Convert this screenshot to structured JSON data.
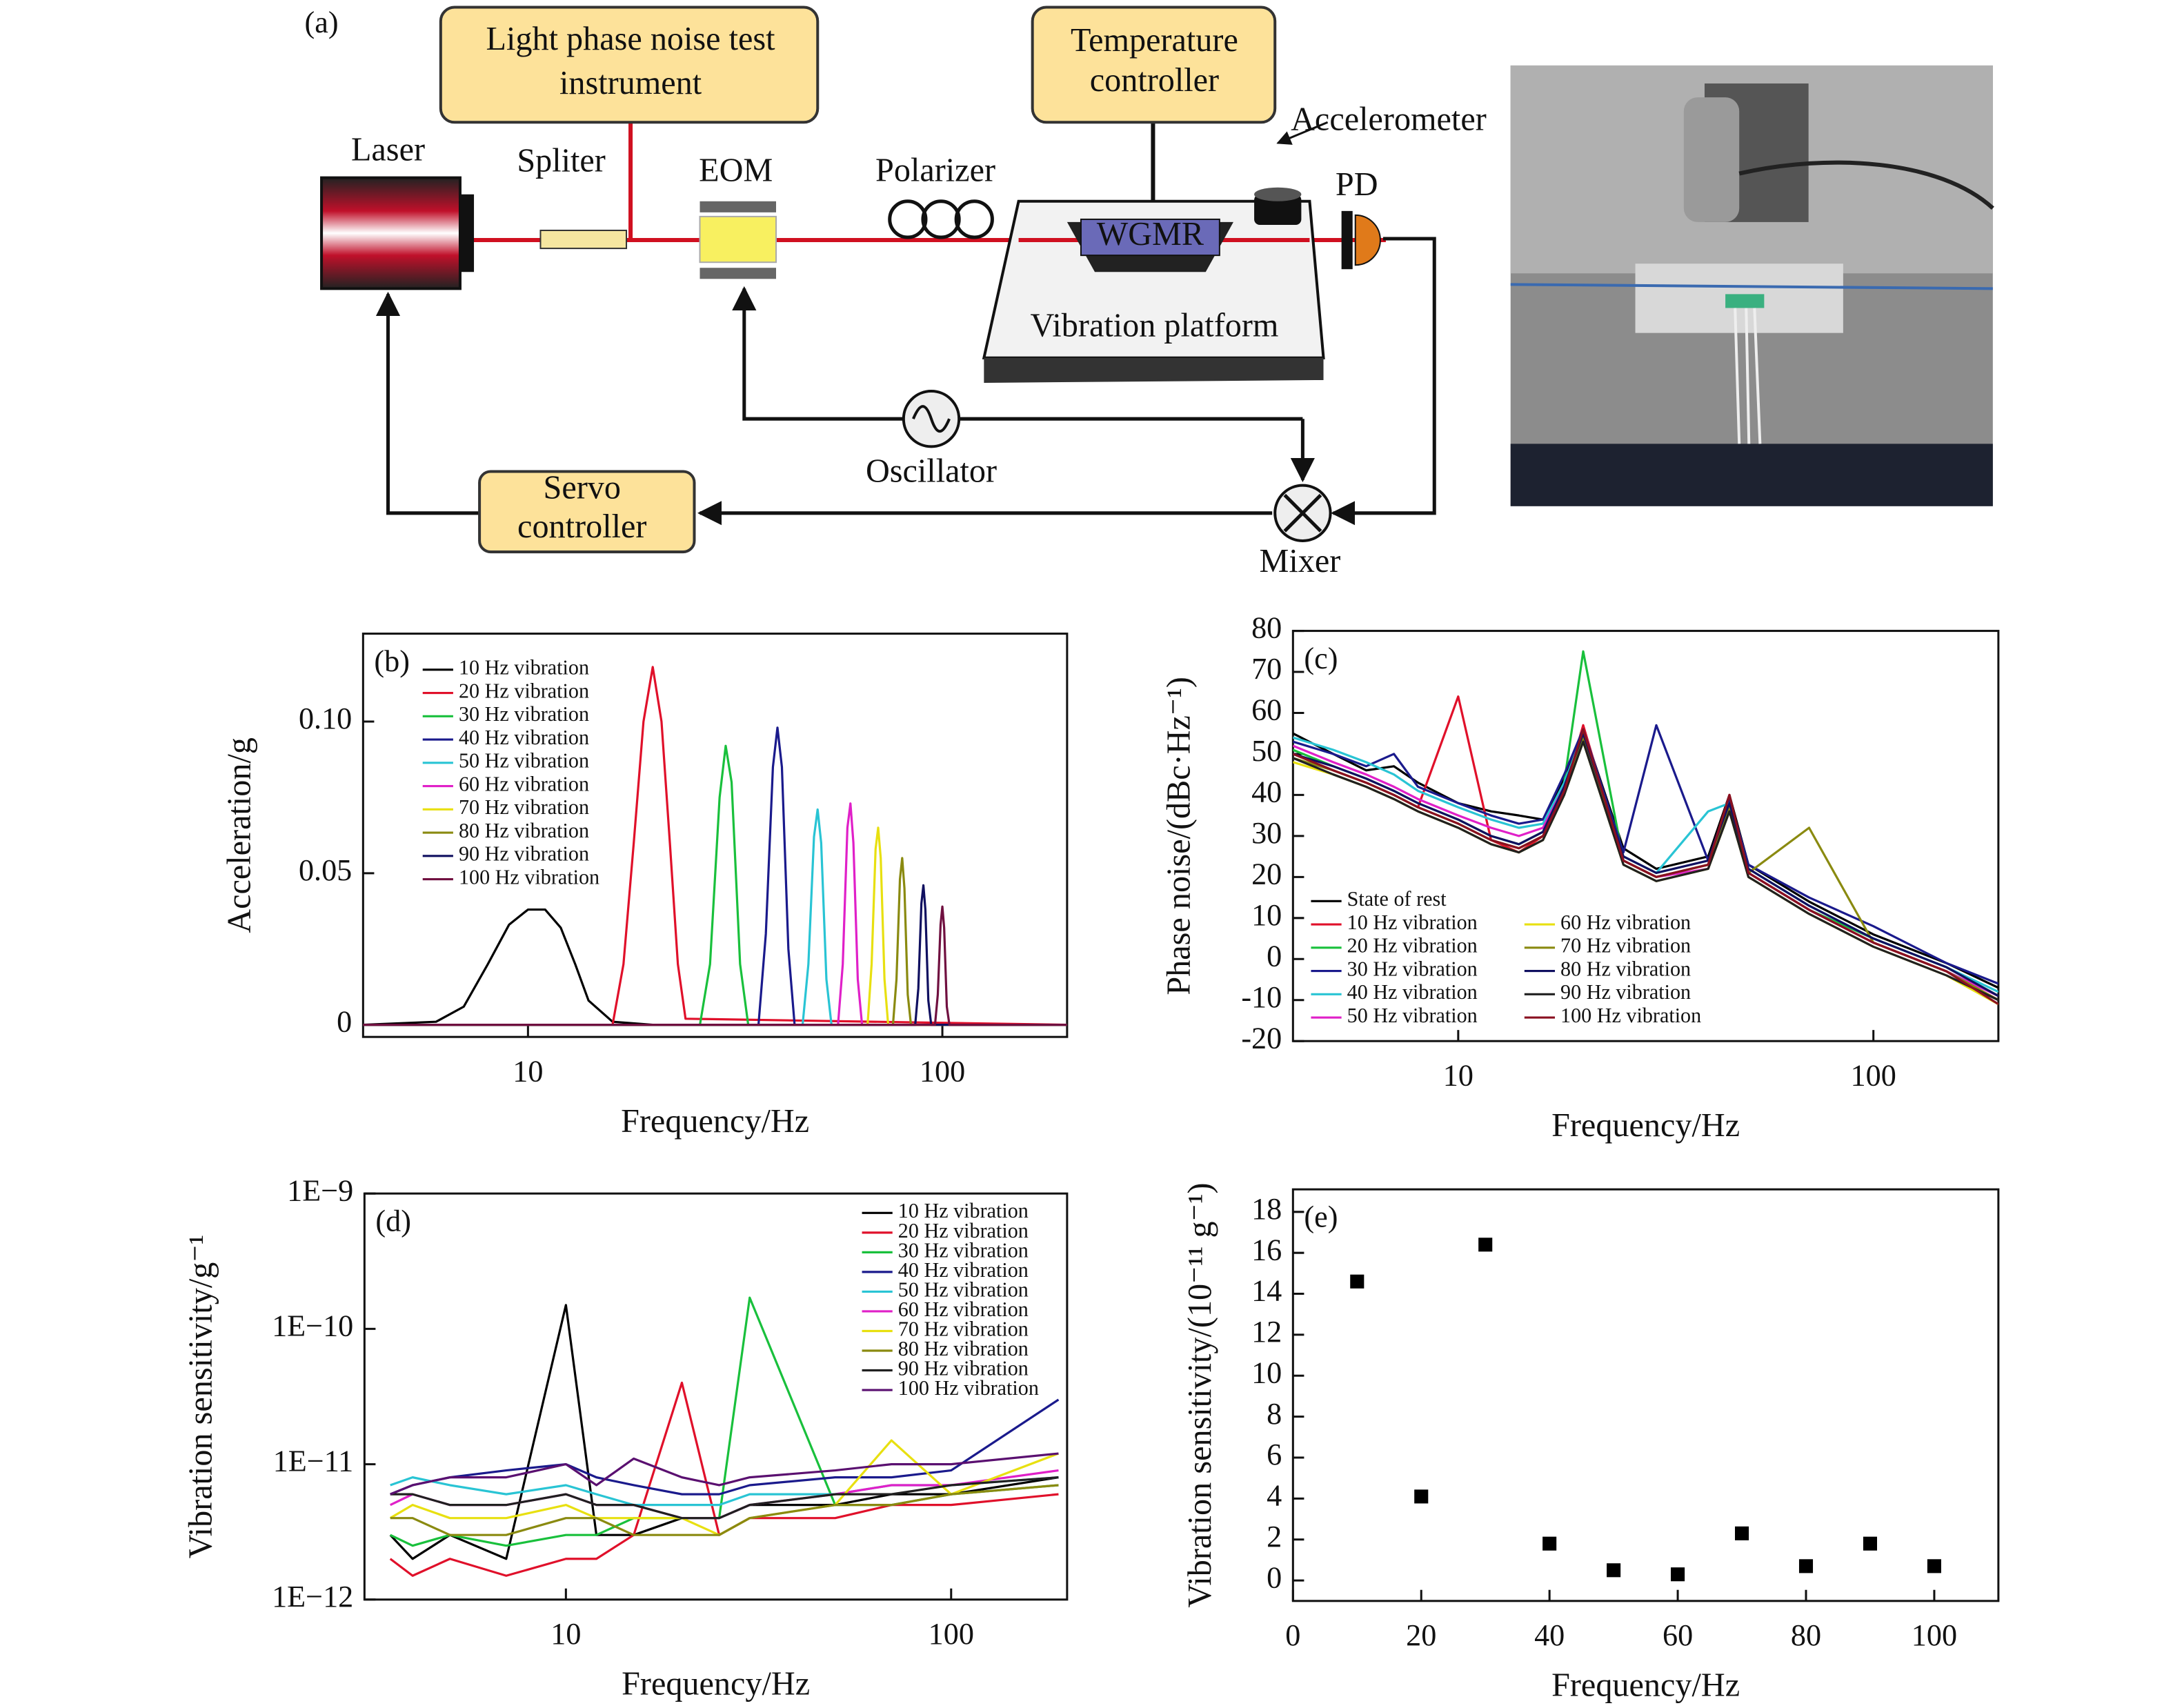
{
  "diagram": {
    "panel_label": "(a)",
    "instrument": [
      "Light phase noise test",
      "instrument"
    ],
    "temperature_controller": [
      "Temperature",
      "controller"
    ],
    "servo_controller": [
      "Servo",
      "controller"
    ],
    "laser": "Laser",
    "splitter": "Spliter",
    "eom": "EOM",
    "polarizer": "Polarizer",
    "wgmr": "WGMR",
    "pd": "PD",
    "accelerometer": "Accelerometer",
    "vibration_platform": "Vibration platform",
    "oscillator": "Oscillator",
    "mixer": "Mixer"
  },
  "chart_data": [
    {
      "type": "line",
      "panel_label": "(b)",
      "xlabel": "Frequency/Hz",
      "ylabel": "Acceleration/g",
      "xscale": "log",
      "xlim": [
        4,
        200
      ],
      "xticks": [
        10,
        100
      ],
      "ylim": [
        -0.004,
        0.129
      ],
      "yticks": [
        0,
        0.05,
        {
          "value": 0.1,
          "label": "0.10"
        }
      ],
      "legend": "upper left",
      "series": [
        {
          "name": "10 Hz vibration",
          "color": "#000000",
          "x": [
            4,
            6,
            7,
            8,
            9,
            10,
            11,
            12,
            13,
            14,
            16,
            20,
            200
          ],
          "values": [
            0,
            0.001,
            0.006,
            0.02,
            0.033,
            0.038,
            0.038,
            0.032,
            0.02,
            0.008,
            0.001,
            0,
            0
          ]
        },
        {
          "name": "20 Hz vibration",
          "color": "#e0102a",
          "x": [
            4,
            16,
            17,
            18,
            19,
            20,
            21,
            22,
            23,
            24,
            200
          ],
          "values": [
            0,
            0,
            0.02,
            0.06,
            0.1,
            0.118,
            0.1,
            0.06,
            0.02,
            0.002,
            0
          ]
        },
        {
          "name": "30 Hz vibration",
          "color": "#19c03c",
          "x": [
            4,
            26,
            27.5,
            29,
            30,
            31,
            32.5,
            34,
            200
          ],
          "values": [
            0,
            0,
            0.02,
            0.075,
            0.092,
            0.08,
            0.02,
            0,
            0
          ]
        },
        {
          "name": "40 Hz vibration",
          "color": "#1a1a8c",
          "x": [
            4,
            36,
            37.5,
            39,
            40,
            41,
            42.5,
            44,
            200
          ],
          "values": [
            0,
            0,
            0.03,
            0.085,
            0.098,
            0.085,
            0.025,
            0,
            0
          ]
        },
        {
          "name": "50 Hz vibration",
          "color": "#29c4d4",
          "x": [
            4,
            46,
            47.5,
            49,
            50,
            51,
            52.5,
            54,
            200
          ],
          "values": [
            0,
            0,
            0.02,
            0.062,
            0.071,
            0.06,
            0.015,
            0,
            0
          ]
        },
        {
          "name": "60 Hz vibration",
          "color": "#e020c8",
          "x": [
            4,
            56,
            57.5,
            59,
            60,
            61,
            62.5,
            64,
            200
          ],
          "values": [
            0,
            0,
            0.02,
            0.065,
            0.073,
            0.06,
            0.015,
            0,
            0
          ]
        },
        {
          "name": "70 Hz vibration",
          "color": "#e8e010",
          "x": [
            4,
            66,
            67.5,
            69,
            70,
            71,
            72.5,
            74,
            200
          ],
          "values": [
            0,
            0,
            0.02,
            0.058,
            0.065,
            0.055,
            0.015,
            0,
            0
          ]
        },
        {
          "name": "80 Hz vibration",
          "color": "#8a8a10",
          "x": [
            4,
            76,
            77.5,
            79,
            80,
            81,
            82.5,
            84,
            200
          ],
          "values": [
            0,
            0,
            0.015,
            0.048,
            0.055,
            0.045,
            0.01,
            0,
            0
          ]
        },
        {
          "name": "90 Hz vibration",
          "color": "#101060",
          "x": [
            4,
            86,
            87.5,
            89,
            90,
            91,
            92.5,
            94,
            200
          ],
          "values": [
            0,
            0,
            0.012,
            0.04,
            0.046,
            0.038,
            0.008,
            0,
            0
          ]
        },
        {
          "name": "100 Hz vibration",
          "color": "#701040",
          "x": [
            4,
            96,
            97.5,
            99,
            100,
            101,
            102.5,
            104,
            200
          ],
          "values": [
            0,
            0,
            0.01,
            0.033,
            0.039,
            0.032,
            0.006,
            0,
            0
          ]
        }
      ]
    },
    {
      "type": "line",
      "panel_label": "(c)",
      "xlabel": "Frequency/Hz",
      "ylabel": "Phase noise/(dBc·Hz⁻¹)",
      "xscale": "log",
      "xlim": [
        4,
        200
      ],
      "xticks": [
        10,
        100
      ],
      "ylim": [
        -20,
        80
      ],
      "yticks": [
        -20,
        -10,
        0,
        10,
        20,
        30,
        40,
        50,
        60,
        70,
        80
      ],
      "legend": "lower left",
      "legend_columns": 2,
      "x": [
        4,
        5,
        6,
        7,
        8,
        10,
        12,
        14,
        16,
        18,
        20,
        25,
        30,
        40,
        45,
        50,
        70,
        100,
        150,
        200
      ],
      "series": [
        {
          "name": "State of rest",
          "color": "#000000",
          "values": [
            55,
            50,
            46,
            47,
            43,
            38,
            36,
            35,
            34,
            44,
            56,
            27,
            22,
            25,
            40,
            23,
            14,
            6,
            -1,
            -7
          ]
        },
        {
          "name": "10 Hz vibration",
          "color": "#e0102a",
          "values": [
            50,
            46,
            43,
            40,
            37,
            64,
            29,
            26,
            30,
            41,
            57,
            24,
            20,
            23,
            40,
            21,
            12,
            4,
            -3,
            -10
          ]
        },
        {
          "name": "20 Hz vibration",
          "color": "#19c03c",
          "values": [
            51,
            47,
            44,
            41,
            38,
            34,
            30,
            28,
            31,
            43,
            75,
            24,
            20,
            23,
            37,
            21,
            12,
            5,
            -2,
            -9
          ]
        },
        {
          "name": "30 Hz vibration",
          "color": "#1a1a8c",
          "values": [
            53,
            50,
            47,
            50,
            42,
            38,
            35,
            33,
            34,
            45,
            56,
            26,
            57,
            24,
            39,
            23,
            15,
            8,
            -1,
            -6
          ]
        },
        {
          "name": "40 Hz vibration",
          "color": "#29c4d4",
          "values": [
            54,
            51,
            48,
            45,
            41,
            37,
            34,
            32,
            33,
            43,
            55,
            25,
            21,
            36,
            38,
            22,
            13,
            5,
            -2,
            -8
          ]
        },
        {
          "name": "50 Hz vibration",
          "color": "#e020c8",
          "values": [
            52,
            48,
            45,
            42,
            39,
            35,
            32,
            30,
            32,
            42,
            54,
            24,
            20,
            22,
            37,
            21,
            12,
            4,
            -3,
            -9
          ]
        },
        {
          "name": "60 Hz vibration",
          "color": "#e8e010",
          "values": [
            48,
            45,
            42,
            39,
            36,
            32,
            28,
            26,
            29,
            40,
            53,
            23,
            19,
            22,
            36,
            20,
            11,
            3,
            -4,
            -11
          ]
        },
        {
          "name": "70 Hz vibration",
          "color": "#8a8a10",
          "values": [
            49,
            46,
            43,
            40,
            37,
            33,
            29,
            27,
            30,
            41,
            54,
            24,
            20,
            23,
            37,
            21,
            32,
            4,
            -3,
            -10
          ]
        },
        {
          "name": "80 Hz vibration",
          "color": "#101060",
          "values": [
            50,
            47,
            44,
            41,
            38,
            34,
            30,
            28,
            31,
            42,
            55,
            25,
            21,
            24,
            38,
            22,
            13,
            5,
            -2,
            -9
          ]
        },
        {
          "name": "90 Hz vibration",
          "color": "#202020",
          "values": [
            49,
            45,
            42,
            39,
            36,
            32,
            28,
            26,
            29,
            40,
            53,
            23,
            19,
            22,
            36,
            20,
            11,
            3,
            -4,
            -10
          ]
        },
        {
          "name": "100 Hz vibration",
          "color": "#8a1020",
          "values": [
            50,
            46,
            43,
            40,
            37,
            33,
            29,
            27,
            30,
            41,
            56,
            24,
            20,
            23,
            40,
            21,
            12,
            4,
            -3,
            -11
          ]
        }
      ]
    },
    {
      "type": "line",
      "panel_label": "(d)",
      "xlabel": "Frequency/Hz",
      "ylabel": "Vibration sensitivity/g⁻¹",
      "xscale": "log",
      "xlim": [
        3,
        200
      ],
      "xticks": [
        10,
        100
      ],
      "yscale": "log",
      "ylim": [
        1e-12,
        1e-09
      ],
      "yticks": [
        {
          "value": 1e-12,
          "label": "1E−12"
        },
        {
          "value": 1e-11,
          "label": "1E−11"
        },
        {
          "value": 1e-10,
          "label": "1E−10"
        },
        {
          "value": 1e-09,
          "label": "1E−9"
        }
      ],
      "legend": "upper right",
      "x": [
        3.5,
        4,
        5,
        7,
        10,
        12,
        15,
        20,
        25,
        30,
        50,
        70,
        100,
        190
      ],
      "series": [
        {
          "name": "10 Hz vibration",
          "color": "#000000",
          "values": [
            3e-12,
            2e-12,
            3e-12,
            2e-12,
            1.5e-10,
            3e-12,
            3e-12,
            4e-12,
            4e-12,
            5e-12,
            5e-12,
            6e-12,
            6e-12,
            8e-12
          ]
        },
        {
          "name": "20 Hz vibration",
          "color": "#e0102a",
          "values": [
            2e-12,
            1.5e-12,
            2e-12,
            1.5e-12,
            2e-12,
            2e-12,
            3e-12,
            4e-11,
            3e-12,
            4e-12,
            4e-12,
            5e-12,
            5e-12,
            6e-12
          ]
        },
        {
          "name": "30 Hz vibration",
          "color": "#19c03c",
          "values": [
            3e-12,
            2.5e-12,
            3e-12,
            2.5e-12,
            3e-12,
            3e-12,
            4e-12,
            4e-12,
            4e-12,
            1.7e-10,
            5e-12,
            5e-12,
            6e-12,
            7e-12
          ]
        },
        {
          "name": "40 Hz vibration",
          "color": "#1a1a8c",
          "values": [
            6e-12,
            7e-12,
            8e-12,
            9e-12,
            1e-11,
            8e-12,
            7e-12,
            6e-12,
            6e-12,
            7e-12,
            8e-12,
            8e-12,
            9e-12,
            3e-11
          ]
        },
        {
          "name": "50 Hz vibration",
          "color": "#29c4d4",
          "values": [
            7e-12,
            8e-12,
            7e-12,
            6e-12,
            7e-12,
            6e-12,
            5e-12,
            5e-12,
            5e-12,
            6e-12,
            6e-12,
            7e-12,
            7e-12,
            8e-12
          ]
        },
        {
          "name": "60 Hz vibration",
          "color": "#e020c8",
          "values": [
            5e-12,
            6e-12,
            5e-12,
            5e-12,
            6e-12,
            5e-12,
            5e-12,
            4e-12,
            4e-12,
            5e-12,
            6e-12,
            7e-12,
            7e-12,
            9e-12
          ]
        },
        {
          "name": "70 Hz vibration",
          "color": "#e8e010",
          "values": [
            4e-12,
            5e-12,
            4e-12,
            4e-12,
            5e-12,
            4e-12,
            4e-12,
            4e-12,
            3e-12,
            4e-12,
            5e-12,
            1.5e-11,
            6e-12,
            1.2e-11
          ]
        },
        {
          "name": "80 Hz vibration",
          "color": "#8a8a10",
          "values": [
            4e-12,
            4e-12,
            3e-12,
            3e-12,
            4e-12,
            4e-12,
            3e-12,
            3e-12,
            3e-12,
            4e-12,
            5e-12,
            5e-12,
            6e-12,
            7e-12
          ]
        },
        {
          "name": "90 Hz vibration",
          "color": "#202020",
          "values": [
            6e-12,
            6e-12,
            5e-12,
            5e-12,
            6e-12,
            5e-12,
            5e-12,
            4e-12,
            4e-12,
            5e-12,
            6e-12,
            6e-12,
            7e-12,
            8e-12
          ]
        },
        {
          "name": "100 Hz vibration",
          "color": "#5a1070",
          "values": [
            6e-12,
            7e-12,
            8e-12,
            8e-12,
            1e-11,
            7e-12,
            1.1e-11,
            8e-12,
            7e-12,
            8e-12,
            9e-12,
            1e-11,
            1e-11,
            1.2e-11
          ]
        }
      ]
    },
    {
      "type": "scatter",
      "panel_label": "(e)",
      "xlabel": "Frequency/Hz",
      "ylabel": "Vibration sensitivity/(10⁻¹¹ g⁻¹)",
      "xlim": [
        0,
        110
      ],
      "xticks": [
        0,
        20,
        40,
        60,
        80,
        100
      ],
      "ylim": [
        -1,
        19.1
      ],
      "yticks": [
        0,
        2,
        4,
        6,
        8,
        10,
        12,
        14,
        16,
        18
      ],
      "color": "#000000",
      "marker": "square",
      "x": [
        10,
        20,
        30,
        40,
        50,
        60,
        70,
        80,
        90,
        100
      ],
      "values": [
        14.6,
        4.1,
        16.4,
        1.8,
        0.5,
        0.3,
        2.3,
        0.7,
        1.8,
        0.7
      ]
    }
  ]
}
